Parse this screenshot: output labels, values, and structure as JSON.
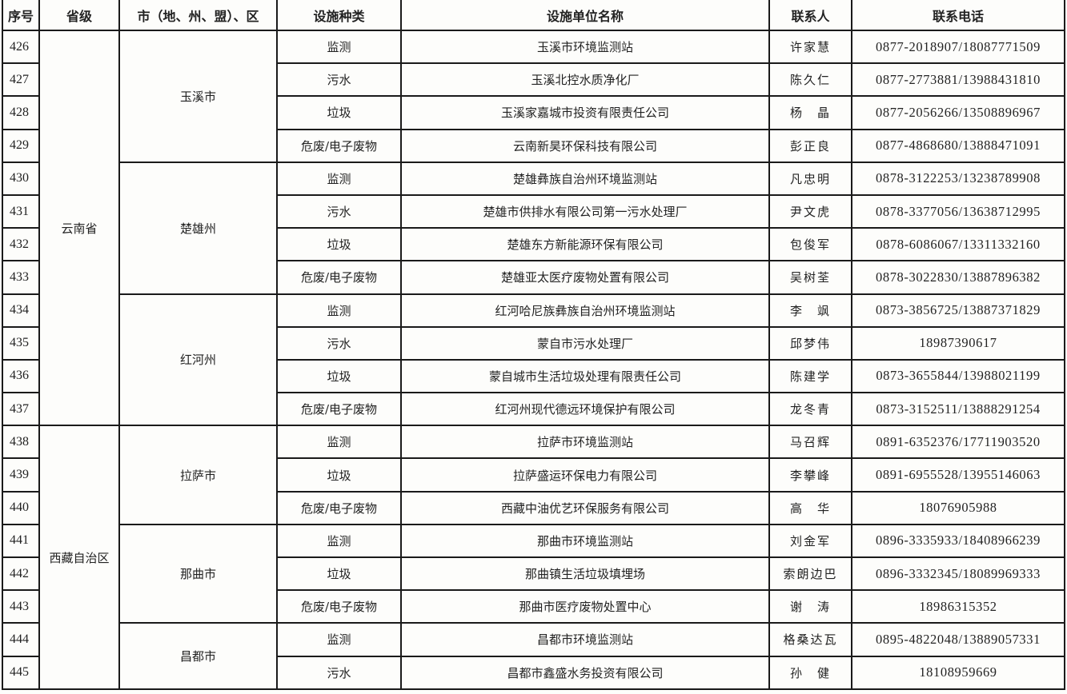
{
  "headers": [
    "序号",
    "省级",
    "市（地、州、盟）、区",
    "设施种类",
    "设施单位名称",
    "联系人",
    "联系电话"
  ],
  "rows": [
    {
      "no": "426",
      "province": "云南省",
      "city": "玉溪市",
      "type": "监测",
      "unit": "玉溪市环境监测站",
      "contact": "许家慧",
      "phone": "0877-2018907/18087771509"
    },
    {
      "no": "427",
      "province": "云南省",
      "city": "玉溪市",
      "type": "污水",
      "unit": "玉溪北控水质净化厂",
      "contact": "陈久仁",
      "phone": "0877-2773881/13988431810"
    },
    {
      "no": "428",
      "province": "云南省",
      "city": "玉溪市",
      "type": "垃圾",
      "unit": "玉溪家嘉城市投资有限责任公司",
      "contact": "杨　晶",
      "phone": "0877-2056266/13508896967"
    },
    {
      "no": "429",
      "province": "云南省",
      "city": "玉溪市",
      "type": "危废/电子废物",
      "unit": "云南新昊环保科技有限公司",
      "contact": "彭正良",
      "phone": "0877-4868680/13888471091"
    },
    {
      "no": "430",
      "province": "云南省",
      "city": "楚雄州",
      "type": "监测",
      "unit": "楚雄彝族自治州环境监测站",
      "contact": "凡忠明",
      "phone": "0878-3122253/13238789908"
    },
    {
      "no": "431",
      "province": "云南省",
      "city": "楚雄州",
      "type": "污水",
      "unit": "楚雄市供排水有限公司第一污水处理厂",
      "contact": "尹文虎",
      "phone": "0878-3377056/13638712995"
    },
    {
      "no": "432",
      "province": "云南省",
      "city": "楚雄州",
      "type": "垃圾",
      "unit": "楚雄东方新能源环保有限公司",
      "contact": "包俊军",
      "phone": "0878-6086067/13311332160"
    },
    {
      "no": "433",
      "province": "云南省",
      "city": "楚雄州",
      "type": "危废/电子废物",
      "unit": "楚雄亚太医疗废物处置有限公司",
      "contact": "吴树荃",
      "phone": "0878-3022830/13887896382"
    },
    {
      "no": "434",
      "province": "云南省",
      "city": "红河州",
      "type": "监测",
      "unit": "红河哈尼族彝族自治州环境监测站",
      "contact": "李　飒",
      "phone": "0873-3856725/13887371829"
    },
    {
      "no": "435",
      "province": "云南省",
      "city": "红河州",
      "type": "污水",
      "unit": "蒙自市污水处理厂",
      "contact": "邱梦伟",
      "phone": "18987390617"
    },
    {
      "no": "436",
      "province": "云南省",
      "city": "红河州",
      "type": "垃圾",
      "unit": "蒙自城市生活垃圾处理有限责任公司",
      "contact": "陈建学",
      "phone": "0873-3655844/13988021199"
    },
    {
      "no": "437",
      "province": "云南省",
      "city": "红河州",
      "type": "危废/电子废物",
      "unit": "红河州现代德远环境保护有限公司",
      "contact": "龙冬青",
      "phone": "0873-3152511/13888291254"
    },
    {
      "no": "438",
      "province": "西藏自治区",
      "city": "拉萨市",
      "type": "监测",
      "unit": "拉萨市环境监测站",
      "contact": "马召辉",
      "phone": "0891-6352376/17711903520"
    },
    {
      "no": "439",
      "province": "西藏自治区",
      "city": "拉萨市",
      "type": "垃圾",
      "unit": "拉萨盛运环保电力有限公司",
      "contact": "李攀峰",
      "phone": "0891-6955528/13955146063"
    },
    {
      "no": "440",
      "province": "西藏自治区",
      "city": "拉萨市",
      "type": "危废/电子废物",
      "unit": "西藏中油优艺环保服务有限公司",
      "contact": "高　华",
      "phone": "18076905988"
    },
    {
      "no": "441",
      "province": "西藏自治区",
      "city": "那曲市",
      "type": "监测",
      "unit": "那曲市环境监测站",
      "contact": "刘金军",
      "phone": "0896-3335933/18408966239"
    },
    {
      "no": "442",
      "province": "西藏自治区",
      "city": "那曲市",
      "type": "垃圾",
      "unit": "那曲镇生活垃圾填埋场",
      "contact": "索朗边巴",
      "phone": "0896-3332345/18089969333"
    },
    {
      "no": "443",
      "province": "西藏自治区",
      "city": "那曲市",
      "type": "危废/电子废物",
      "unit": "那曲市医疗废物处置中心",
      "contact": "谢　涛",
      "phone": "18986315352"
    },
    {
      "no": "444",
      "province": "西藏自治区",
      "city": "昌都市",
      "type": "监测",
      "unit": "昌都市环境监测站",
      "contact": "格桑达瓦",
      "phone": "0895-4822048/13889057331"
    },
    {
      "no": "445",
      "province": "西藏自治区",
      "city": "昌都市",
      "type": "污水",
      "unit": "昌都市鑫盛水务投资有限公司",
      "contact": "孙　健",
      "phone": "18108959669"
    }
  ]
}
